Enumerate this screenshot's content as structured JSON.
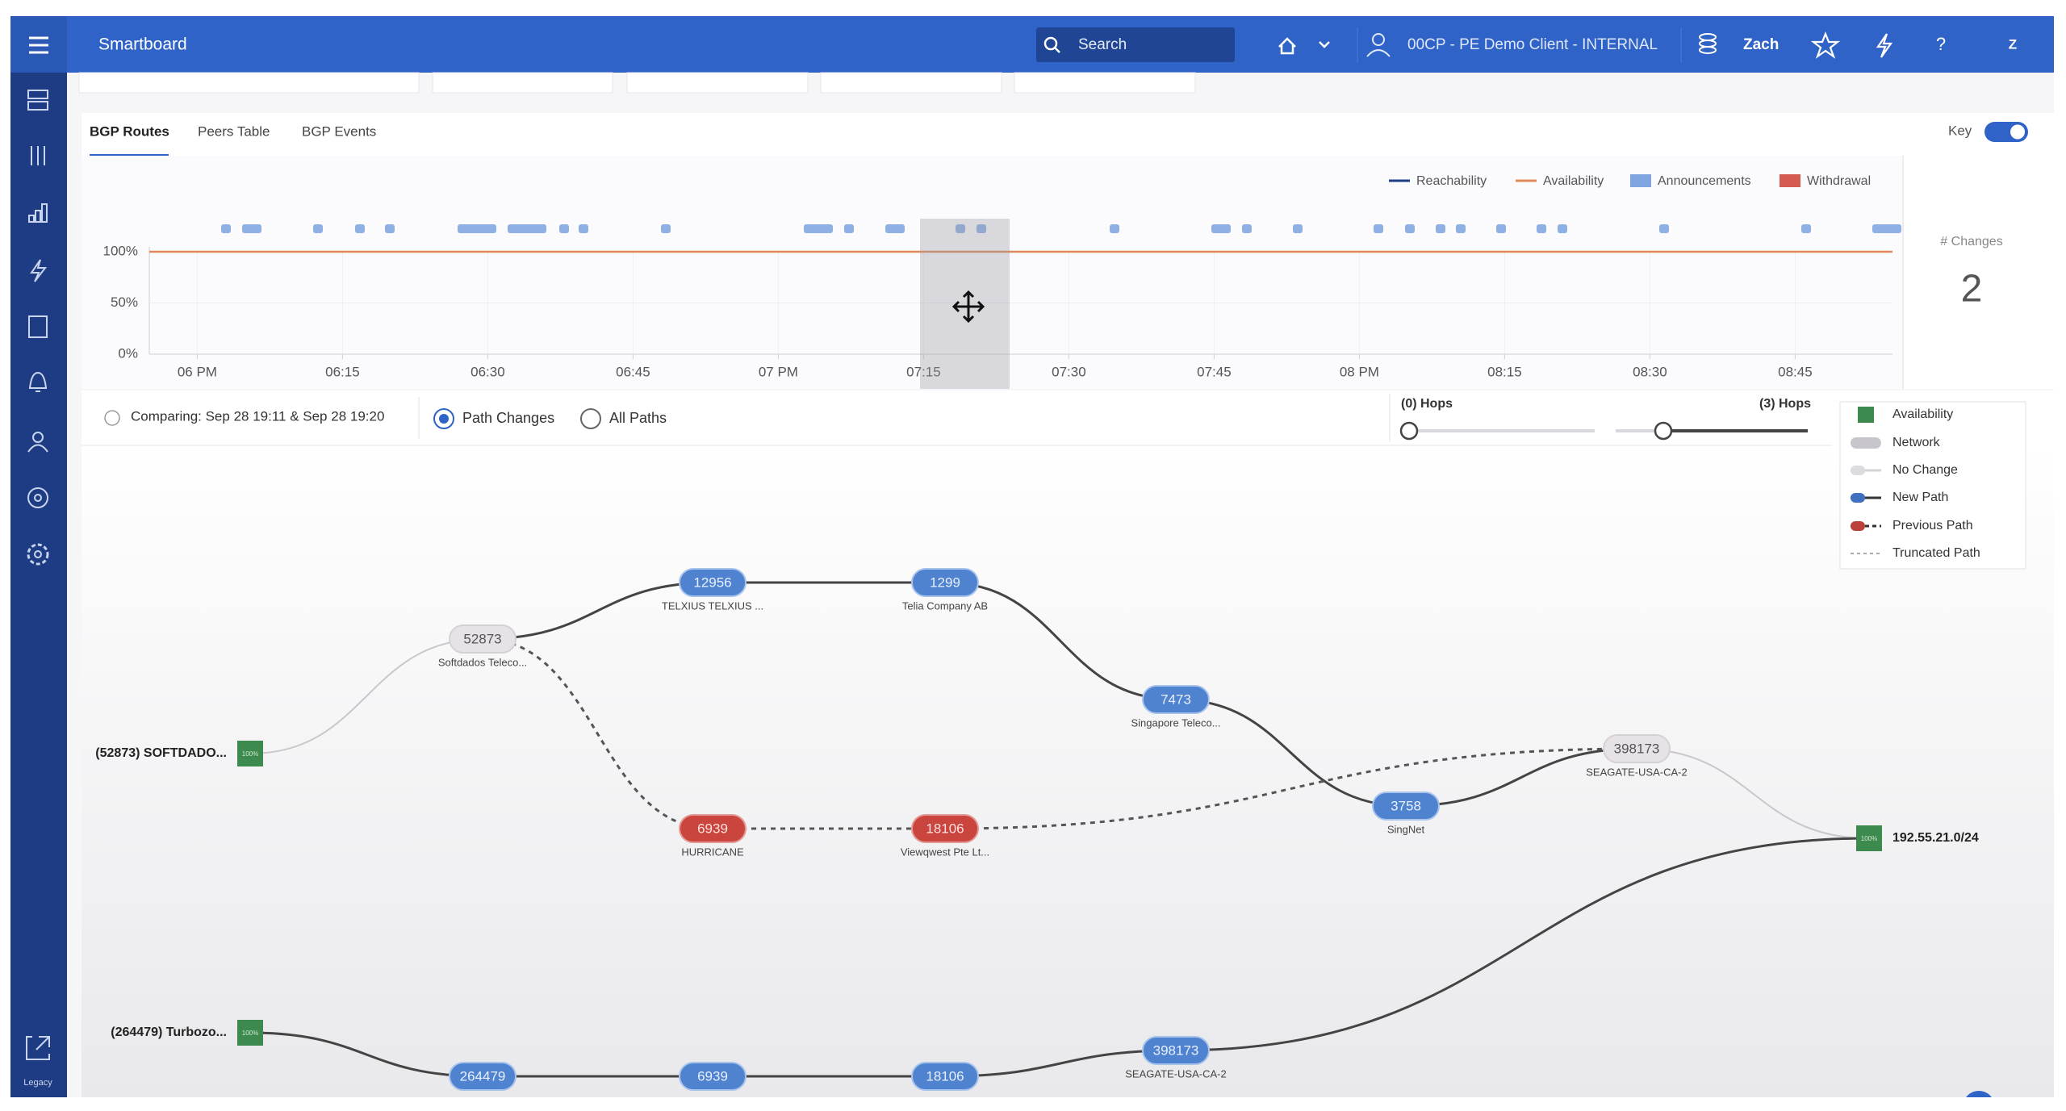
{
  "header": {
    "app_title": "Smartboard",
    "search": "Search",
    "client": "00CP - PE Demo Client - INTERNAL",
    "user": "Zach",
    "avatar": "Z",
    "help": "?"
  },
  "sidebar": {
    "bottom_label": "Legacy"
  },
  "tabs": [
    "BGP Routes",
    "Peers Table",
    "BGP Events"
  ],
  "key_toggle": "Key",
  "timeline": {
    "legend": [
      "Reachability",
      "Availability",
      "Announcements",
      "Withdrawal"
    ],
    "ylim": [
      0,
      100
    ],
    "yticks": [
      {
        "value": 0,
        "label": "0%"
      },
      {
        "value": 50,
        "label": "50%"
      },
      {
        "value": 100,
        "label": "100%"
      }
    ],
    "xticks": [
      "06 PM",
      "06:15",
      "06:30",
      "06:45",
      "07 PM",
      "07:15",
      "07:30",
      "07:45",
      "08 PM",
      "08:15",
      "08:30",
      "08:45"
    ],
    "changes_label": "# Changes",
    "changes_value": 2
  },
  "compare": {
    "text": "Comparing: Sep 28 19:11 & Sep 28 19:20",
    "options": [
      "Path Changes",
      "All Paths"
    ]
  },
  "hops": {
    "min": "(0) Hops",
    "max": "(3) Hops"
  },
  "key": [
    "Availability",
    "Network",
    "No Change",
    "New Path",
    "Previous Path",
    "Truncated Path"
  ],
  "endpoints": [
    {
      "label": "(52873) SOFTDADO...",
      "availability": "100%"
    },
    {
      "label": "(264479) Turbozo...",
      "availability": "100%"
    },
    {
      "label": "192.55.21.0/24",
      "availability": "100%"
    }
  ],
  "nodes": [
    {
      "asn": "52873",
      "name": "Softdados Teleco..."
    },
    {
      "asn": "12956",
      "name": "TELXIUS TELXIUS ..."
    },
    {
      "asn": "1299",
      "name": "Telia Company AB"
    },
    {
      "asn": "7473",
      "name": "Singapore Teleco..."
    },
    {
      "asn": "3758",
      "name": "SingNet"
    },
    {
      "asn": "398173",
      "name": "SEAGATE-USA-CA-2"
    },
    {
      "asn": "6939",
      "name": "HURRICANE"
    },
    {
      "asn": "18106",
      "name": "Viewqwest Pte Lt..."
    },
    {
      "asn": "264479"
    },
    {
      "asn": "6939"
    },
    {
      "asn": "18106"
    },
    {
      "asn": "398173",
      "name": "SEAGATE-USA-CA-2"
    }
  ]
}
